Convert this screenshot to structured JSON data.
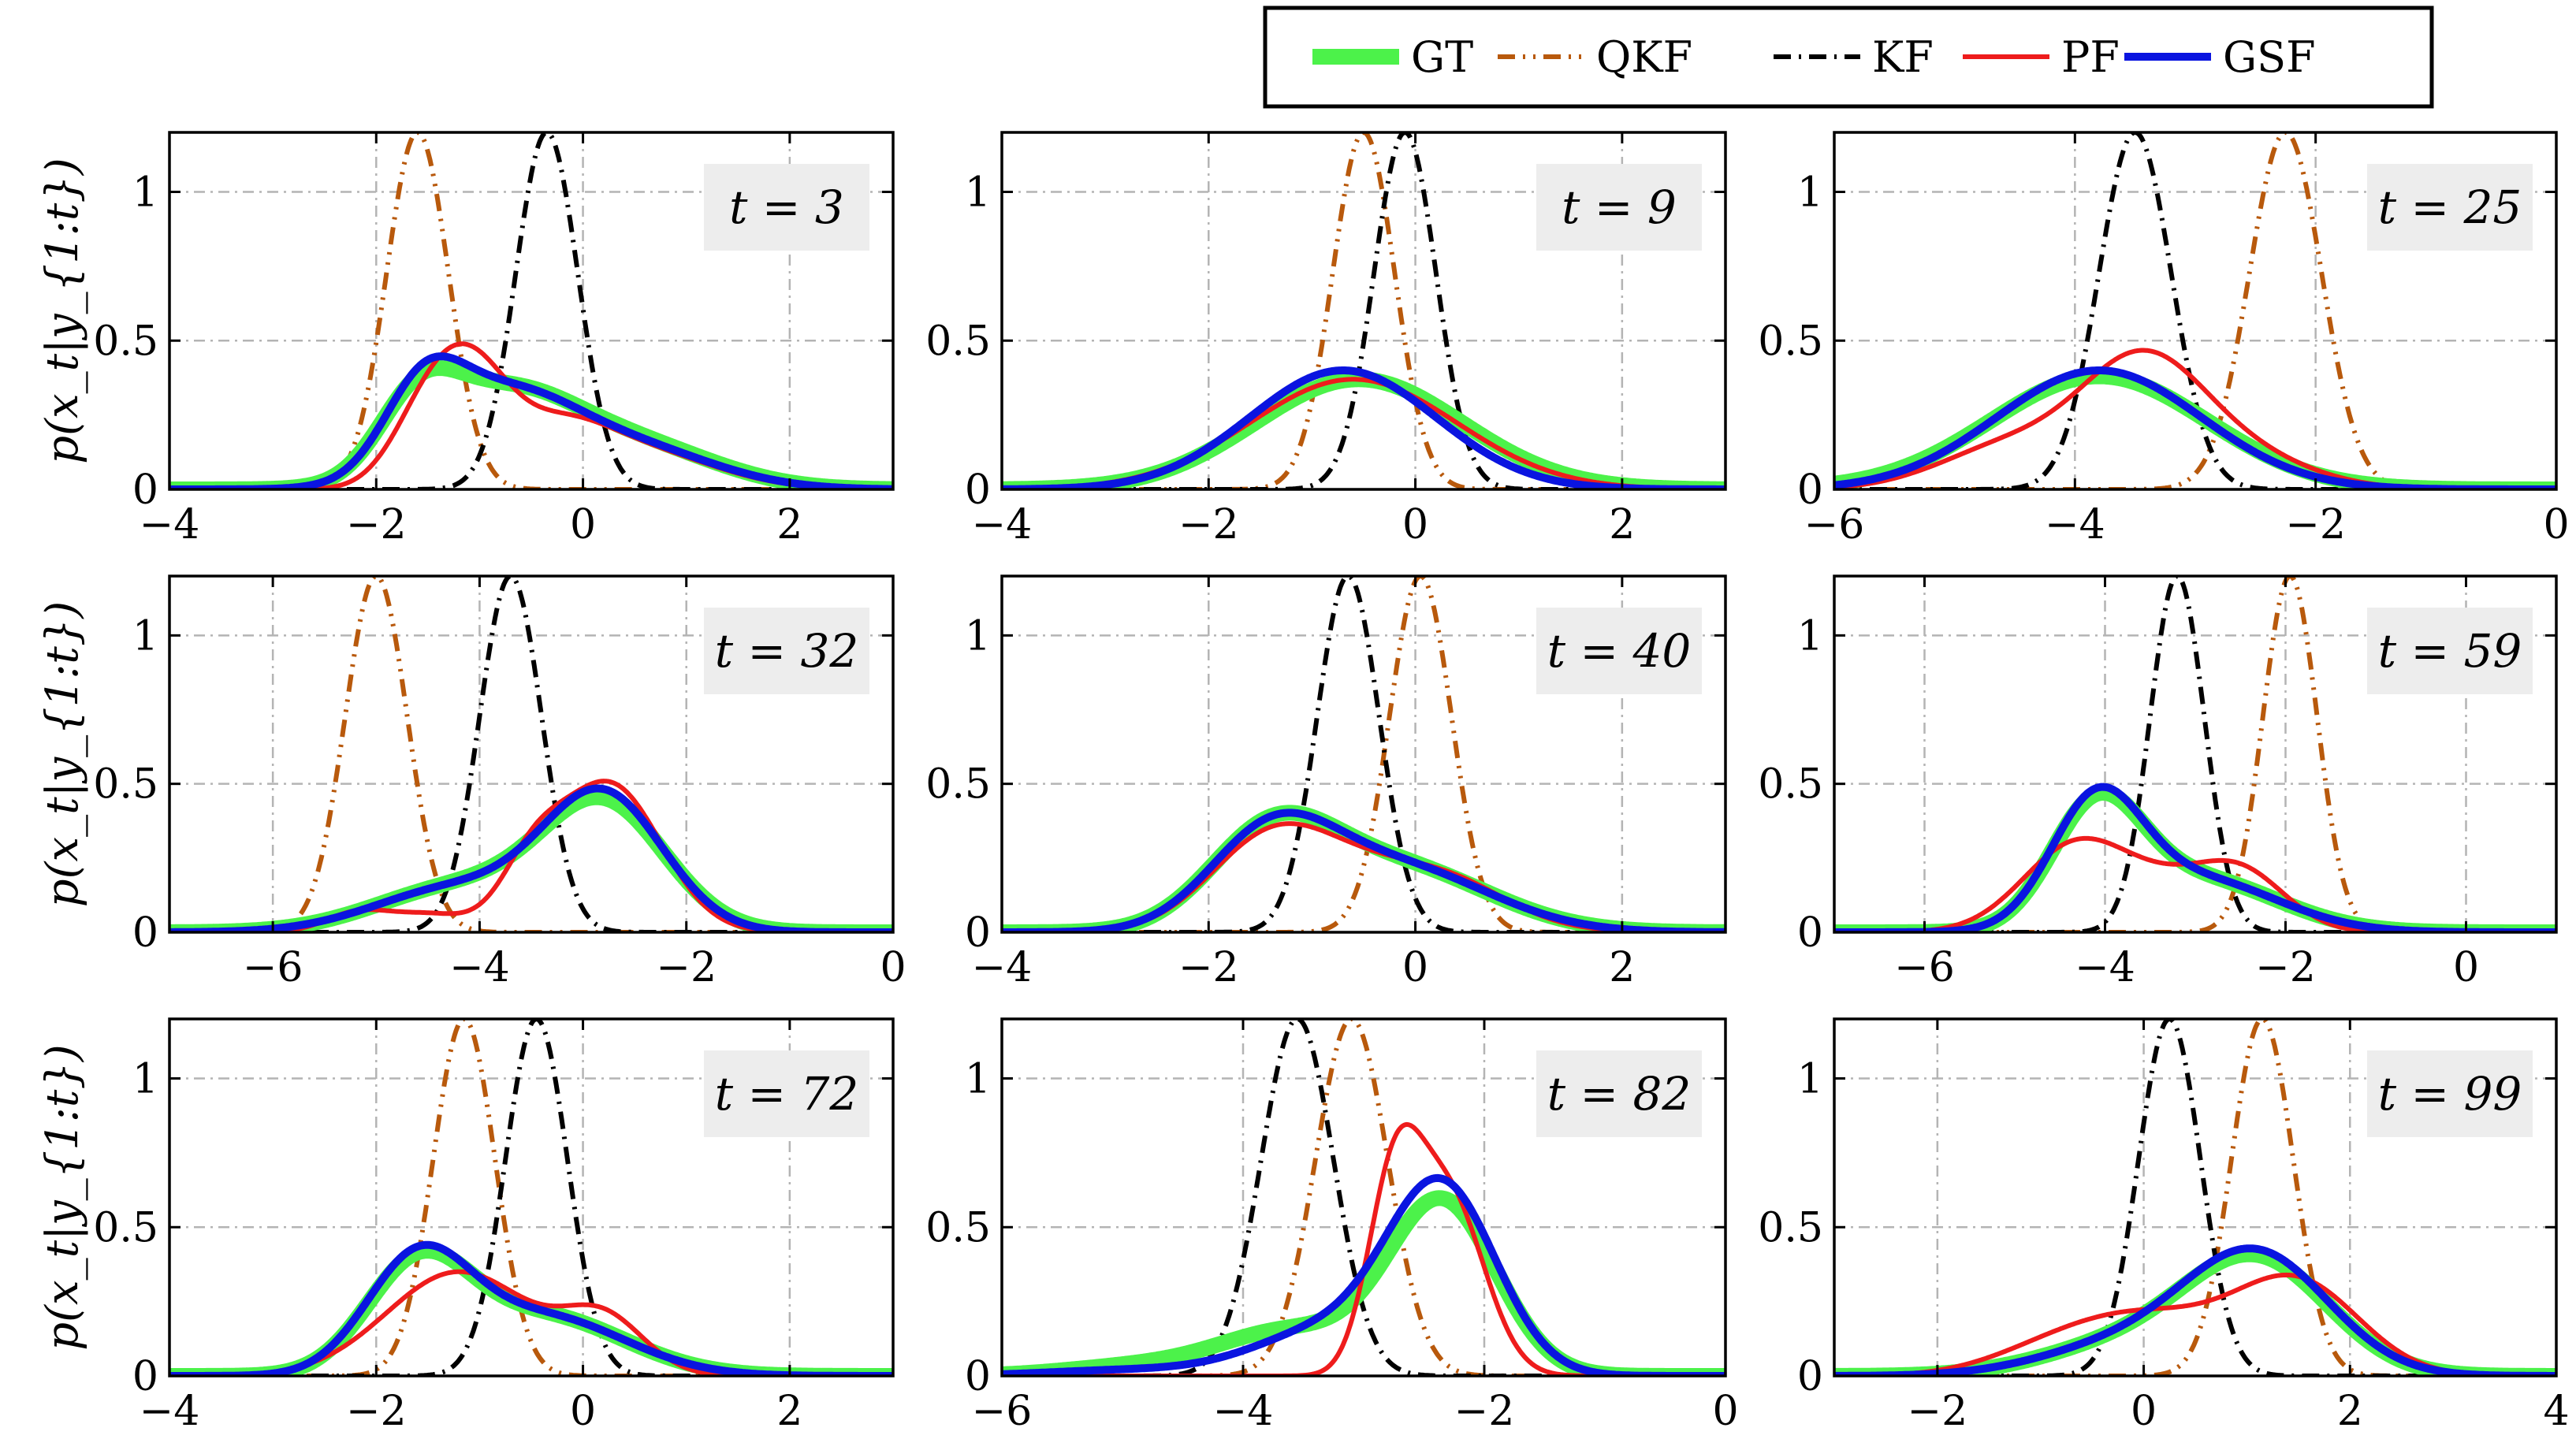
{
  "colors": {
    "GT": "#4cf24a",
    "QKF": "#b8590c",
    "KF": "#000000",
    "PF": "#ee1c1c",
    "GSF": "#0a14e0",
    "grid": "#b4b4b4",
    "badge": "#ededed"
  },
  "chart_data": {
    "type": "line",
    "title": "",
    "ylabel": "p(x_t|y_{1:t})",
    "ylim": [
      0,
      1.2
    ],
    "yticks": [
      0,
      0.5,
      1
    ],
    "ytick_labels": [
      "0",
      "0.5",
      "1"
    ],
    "legend": {
      "position": "top-right",
      "entries": [
        {
          "key": "GT",
          "label": "GT",
          "style": "solid-thick"
        },
        {
          "key": "QKF",
          "label": "QKF",
          "style": "dash-dot-dot"
        },
        {
          "key": "KF",
          "label": "KF",
          "style": "dash-dot"
        },
        {
          "key": "PF",
          "label": "PF",
          "style": "solid"
        },
        {
          "key": "GSF",
          "label": "GSF",
          "style": "solid-thick"
        }
      ]
    },
    "panels": [
      {
        "t_label": "t = 3",
        "xlim": [
          -4,
          3
        ],
        "xticks": [
          -4,
          -2,
          0,
          2
        ],
        "xtick_labels": [
          "−4",
          "−2",
          "0",
          "2"
        ],
        "series": {
          "QKF": [
            [
              -1.6,
              1.2,
              0.3
            ]
          ],
          "KF": [
            [
              -0.35,
              1.2,
              0.3
            ]
          ],
          "GT": [
            [
              -1.6,
              0.22,
              0.38
            ],
            [
              -0.8,
              0.3,
              0.7
            ],
            [
              0.5,
              0.14,
              0.8
            ]
          ],
          "GSF": [
            [
              -1.55,
              0.25,
              0.38
            ],
            [
              -0.8,
              0.3,
              0.7
            ],
            [
              0.5,
              0.13,
              0.8
            ]
          ],
          "PF": [
            [
              -1.5,
              0.25,
              0.35
            ],
            [
              -1.05,
              0.3,
              0.35
            ],
            [
              -0.3,
              0.16,
              0.5
            ],
            [
              0.5,
              0.13,
              0.75
            ]
          ]
        }
      },
      {
        "t_label": "t = 9",
        "xlim": [
          -4,
          3
        ],
        "xticks": [
          -4,
          -2,
          0,
          2
        ],
        "xtick_labels": [
          "−4",
          "−2",
          "0",
          "2"
        ],
        "series": {
          "QKF": [
            [
              -0.5,
              1.2,
              0.3
            ]
          ],
          "KF": [
            [
              -0.1,
              1.2,
              0.3
            ]
          ],
          "GT": [
            [
              -0.55,
              0.37,
              1.0
            ]
          ],
          "GSF": [
            [
              -0.7,
              0.4,
              0.9
            ]
          ],
          "PF": [
            [
              -0.6,
              0.37,
              1.0
            ]
          ]
        }
      },
      {
        "t_label": "t = 25",
        "xlim": [
          -6,
          0
        ],
        "xticks": [
          -6,
          -4,
          -2,
          0
        ],
        "xtick_labels": [
          "−6",
          "−4",
          "−2",
          "0"
        ],
        "series": {
          "QKF": [
            [
              -2.25,
              1.2,
              0.3
            ]
          ],
          "KF": [
            [
              -3.5,
              1.2,
              0.3
            ]
          ],
          "GT": [
            [
              -3.8,
              0.38,
              0.9
            ]
          ],
          "GSF": [
            [
              -3.8,
              0.4,
              0.85
            ]
          ],
          "PF": [
            [
              -3.45,
              0.38,
              0.5
            ],
            [
              -4.5,
              0.15,
              0.6
            ],
            [
              -2.7,
              0.12,
              0.6
            ]
          ]
        }
      },
      {
        "t_label": "t = 32",
        "xlim": [
          -7,
          0
        ],
        "xticks": [
          -6,
          -4,
          -2,
          0
        ],
        "xtick_labels": [
          "−6",
          "−4",
          "−2",
          "0"
        ],
        "series": {
          "QKF": [
            [
              -5.0,
              1.2,
              0.3
            ]
          ],
          "KF": [
            [
              -3.7,
              1.2,
              0.3
            ]
          ],
          "GT": [
            [
              -2.8,
              0.42,
              0.6
            ],
            [
              -4.2,
              0.15,
              0.8
            ]
          ],
          "GSF": [
            [
              -2.8,
              0.45,
              0.58
            ],
            [
              -4.2,
              0.15,
              0.8
            ]
          ],
          "PF": [
            [
              -2.75,
              0.5,
              0.5
            ],
            [
              -3.5,
              0.18,
              0.3
            ],
            [
              -5.2,
              0.06,
              0.3
            ],
            [
              -4.5,
              0.06,
              0.4
            ]
          ]
        }
      },
      {
        "t_label": "t = 40",
        "xlim": [
          -4,
          3
        ],
        "xticks": [
          -4,
          -2,
          0,
          2
        ],
        "xtick_labels": [
          "−4",
          "−2",
          "0",
          "2"
        ],
        "series": {
          "QKF": [
            [
              0.05,
              1.2,
              0.3
            ]
          ],
          "KF": [
            [
              -0.65,
              1.2,
              0.3
            ]
          ],
          "GT": [
            [
              -1.4,
              0.3,
              0.6
            ],
            [
              -0.2,
              0.22,
              0.9
            ]
          ],
          "GSF": [
            [
              -1.4,
              0.3,
              0.6
            ],
            [
              -0.2,
              0.22,
              0.9
            ]
          ],
          "PF": [
            [
              -1.4,
              0.29,
              0.6
            ],
            [
              -0.2,
              0.2,
              0.8
            ],
            [
              0.5,
              0.04,
              0.5
            ]
          ]
        }
      },
      {
        "t_label": "t = 59",
        "xlim": [
          -7,
          1
        ],
        "xticks": [
          -6,
          -4,
          -2,
          0
        ],
        "xtick_labels": [
          "−6",
          "−4",
          "−2",
          "0"
        ],
        "series": {
          "QKF": [
            [
              -1.95,
              1.2,
              0.3
            ]
          ],
          "KF": [
            [
              -3.2,
              1.2,
              0.3
            ]
          ],
          "GT": [
            [
              -4.1,
              0.38,
              0.5
            ],
            [
              -3.0,
              0.18,
              0.9
            ]
          ],
          "GSF": [
            [
              -4.1,
              0.4,
              0.5
            ],
            [
              -3.0,
              0.18,
              0.9
            ]
          ],
          "PF": [
            [
              -4.3,
              0.3,
              0.6
            ],
            [
              -2.5,
              0.2,
              0.5
            ],
            [
              -3.3,
              0.1,
              0.5
            ]
          ]
        }
      },
      {
        "t_label": "t = 72",
        "xlim": [
          -4,
          3
        ],
        "xticks": [
          -4,
          -2,
          0,
          2
        ],
        "xtick_labels": [
          "−4",
          "−2",
          "0",
          "2"
        ],
        "series": {
          "QKF": [
            [
              -1.15,
              1.2,
              0.3
            ]
          ],
          "KF": [
            [
              -0.45,
              1.2,
              0.3
            ]
          ],
          "GT": [
            [
              -1.6,
              0.35,
              0.5
            ],
            [
              -0.4,
              0.2,
              0.8
            ]
          ],
          "GSF": [
            [
              -1.6,
              0.37,
              0.5
            ],
            [
              -0.4,
              0.2,
              0.8
            ]
          ],
          "PF": [
            [
              -1.2,
              0.35,
              0.7
            ],
            [
              0.2,
              0.18,
              0.4
            ]
          ]
        }
      },
      {
        "t_label": "t = 82",
        "xlim": [
          -6,
          0
        ],
        "xticks": [
          -6,
          -4,
          -2,
          0
        ],
        "xtick_labels": [
          "−6",
          "−4",
          "−2",
          "0"
        ],
        "series": {
          "QKF": [
            [
              -3.1,
              1.2,
              0.3
            ]
          ],
          "KF": [
            [
              -3.55,
              1.2,
              0.3
            ]
          ],
          "GT": [
            [
              -2.35,
              0.58,
              0.45
            ],
            [
              -3.6,
              0.15,
              0.6
            ],
            [
              -4.9,
              0.03,
              0.6
            ]
          ],
          "GSF": [
            [
              -2.35,
              0.62,
              0.45
            ],
            [
              -3.3,
              0.15,
              0.6
            ],
            [
              -4.9,
              0.02,
              0.7
            ]
          ],
          "PF": [
            [
              -2.75,
              0.6,
              0.22
            ],
            [
              -2.3,
              0.6,
              0.3
            ]
          ]
        }
      },
      {
        "t_label": "t = 99",
        "xlim": [
          -3,
          4
        ],
        "xticks": [
          -2,
          0,
          2,
          4
        ],
        "xtick_labels": [
          "−2",
          "0",
          "2",
          "4"
        ],
        "series": {
          "QKF": [
            [
              1.15,
              1.2,
              0.3
            ]
          ],
          "KF": [
            [
              0.25,
              1.2,
              0.3
            ]
          ],
          "GT": [
            [
              1.1,
              0.38,
              0.7
            ],
            [
              -0.2,
              0.1,
              0.8
            ]
          ],
          "GSF": [
            [
              1.1,
              0.4,
              0.7
            ],
            [
              -0.2,
              0.1,
              0.8
            ]
          ],
          "PF": [
            [
              1.5,
              0.3,
              0.6
            ],
            [
              0.0,
              0.2,
              0.8
            ],
            [
              -1.0,
              0.04,
              0.6
            ]
          ]
        }
      }
    ]
  }
}
